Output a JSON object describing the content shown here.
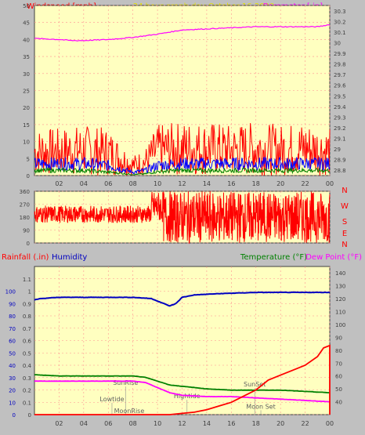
{
  "header": {
    "left_title": "Windspeed [mph]",
    "center_title": "24 hour graph day   October 16 2020",
    "right_title": "Barometer [.in]"
  },
  "colors": {
    "plot_bg": "#ffffc0",
    "frame_bg": "#c0c0c0",
    "grid": "#ff9090",
    "wind_gust": "#ff0000",
    "wind_avg": "#0000ff",
    "wind_low": "#008000",
    "barometer": "#ff00ff",
    "title_left": "#ff0000",
    "title_center": "#e0e000",
    "humidity": "#0000c0",
    "temperature": "#008000",
    "dewpoint": "#ff00ff",
    "rain": "#ff0000",
    "astro": "#606060"
  },
  "chart_data": [
    {
      "name": "wind",
      "type": "line",
      "ylabel_left": "Windspeed [mph]",
      "ylabel_right": "Barometer [.in]",
      "x_ticks": [
        "02",
        "04",
        "06",
        "08",
        "10",
        "12",
        "14",
        "16",
        "18",
        "20",
        "22",
        "00"
      ],
      "y_left_ticks": [
        "0",
        "5",
        "10",
        "15",
        "20",
        "25",
        "30",
        "35",
        "40",
        "45",
        "50"
      ],
      "y_right_ticks": [
        "28.8",
        "28.9",
        "29",
        "29.1",
        "29.2",
        "29.3",
        "29.4",
        "29.5",
        "29.6",
        "29.7",
        "29.8",
        "29.9",
        "30",
        "30.1",
        "30.2",
        "30.3"
      ],
      "ylim_left": [
        0,
        50
      ],
      "ylim_right": [
        28.75,
        30.35
      ],
      "xlim": [
        0,
        24
      ],
      "series": [
        {
          "key": "gust",
          "values_x": [
            0,
            2,
            4,
            6,
            7,
            8,
            9,
            10,
            12,
            14,
            16,
            18,
            20,
            22,
            24
          ],
          "values_y": [
            7,
            7,
            7.5,
            7,
            5,
            3,
            4,
            7.5,
            8,
            8,
            7.5,
            8,
            7.5,
            8,
            7
          ]
        },
        {
          "key": "average",
          "values_x": [
            0,
            2,
            4,
            6,
            7,
            8,
            9,
            10,
            12,
            14,
            16,
            18,
            20,
            22,
            24
          ],
          "values_y": [
            3.5,
            3.5,
            3.5,
            3,
            2,
            1,
            1.5,
            3,
            3.5,
            3.5,
            3.5,
            3.5,
            3.5,
            3.5,
            3.5
          ]
        },
        {
          "key": "low",
          "values_x": [
            0,
            2,
            4,
            6,
            7,
            8,
            9,
            10,
            12,
            14,
            16,
            18,
            20,
            22,
            24
          ],
          "values_y": [
            1.5,
            1.5,
            1.5,
            1,
            0.7,
            0.3,
            0.5,
            1.2,
            1.5,
            1.5,
            1.5,
            1.5,
            1.5,
            1.5,
            1.5
          ]
        },
        {
          "key": "barometer",
          "values_x": [
            0,
            2,
            3,
            4,
            6,
            8,
            10,
            12,
            14,
            16,
            18,
            20,
            22,
            23,
            24
          ],
          "values_y": [
            30.04,
            30.03,
            30.02,
            30.02,
            30.03,
            30.05,
            30.08,
            30.12,
            30.13,
            30.14,
            30.15,
            30.15,
            30.15,
            30.15,
            30.17
          ]
        }
      ]
    },
    {
      "name": "direction",
      "type": "scatter",
      "y_ticks": [
        "0",
        "90",
        "180",
        "270",
        "360"
      ],
      "compass": [
        "N",
        "W",
        "S",
        "E",
        "N"
      ],
      "ylim": [
        0,
        360
      ],
      "xlim": [
        0,
        24
      ],
      "segments": [
        {
          "x_from": 0,
          "x_to": 9.5,
          "y_center": 200,
          "spread": 60
        },
        {
          "x_from": 9.5,
          "x_to": 10.5,
          "y_center": 250,
          "spread": 110
        },
        {
          "x_from": 10.5,
          "x_to": 24,
          "y_center": 180,
          "spread": 180
        }
      ]
    },
    {
      "name": "climate",
      "type": "line",
      "ylabel_left": "Rainfall (.in)",
      "ylabel_left2": "Humidity",
      "ylabel_right": "Temperature (°F)",
      "ylabel_right2": "Dew Point (°F)",
      "x_ticks": [
        "02",
        "04",
        "06",
        "08",
        "10",
        "12",
        "14",
        "16",
        "18",
        "20",
        "22",
        "00"
      ],
      "y_left_ticks": [
        "0",
        "0.1",
        "0.2",
        "0.3",
        "0.4",
        "0.5",
        "0.6",
        "0.7",
        "0.8",
        "0.9",
        "1",
        "1.1"
      ],
      "y_left2_ticks": [
        "0",
        "10",
        "20",
        "30",
        "40",
        "50",
        "60",
        "70",
        "80",
        "90",
        "100"
      ],
      "y_right_ticks": [
        "40",
        "50",
        "60",
        "70",
        "80",
        "90",
        "100",
        "110",
        "120",
        "130",
        "140"
      ],
      "ylim_left": [
        0,
        1.2
      ],
      "ylim_right": [
        30,
        145
      ],
      "xlim": [
        0,
        24
      ],
      "series": [
        {
          "key": "humidity",
          "axis": "left2",
          "values_x": [
            0,
            0.5,
            2,
            6,
            8,
            9.5,
            10.5,
            11,
            11.5,
            12,
            13,
            15,
            18,
            20,
            22,
            24
          ],
          "values_y": [
            93,
            94,
            95,
            95,
            95,
            94,
            90,
            88,
            90,
            95,
            97,
            98,
            99,
            99,
            99,
            99
          ]
        },
        {
          "key": "temperature",
          "axis": "right",
          "values_x": [
            0,
            2,
            4,
            6,
            8,
            9,
            10,
            11,
            12,
            14,
            16,
            18,
            20,
            22,
            24
          ],
          "values_y": [
            61,
            60,
            60,
            60,
            60,
            59,
            56,
            53,
            52,
            50,
            49,
            49,
            49,
            48,
            47
          ]
        },
        {
          "key": "dewpoint",
          "axis": "right",
          "values_x": [
            0,
            2,
            4,
            6,
            8,
            9,
            10,
            11,
            12,
            14,
            16,
            18,
            20,
            22,
            24
          ],
          "values_y": [
            56,
            56,
            56,
            56,
            56,
            55,
            51,
            47,
            45,
            44,
            44,
            43,
            42,
            41,
            40
          ]
        },
        {
          "key": "rain",
          "axis": "left",
          "values_x": [
            0,
            11,
            12,
            13,
            14,
            15,
            16,
            17,
            18,
            19,
            20,
            21,
            22,
            23,
            23.5,
            24,
            24
          ],
          "values_y": [
            0,
            0,
            0.01,
            0.02,
            0.04,
            0.07,
            0.1,
            0.15,
            0.2,
            0.28,
            0.32,
            0.36,
            0.4,
            0.47,
            0.54,
            0.56,
            0
          ]
        }
      ],
      "astro": [
        {
          "label": "SunRise",
          "x": 7.4,
          "y_frac": 0.19
        },
        {
          "label": "Lowtide",
          "x": 6.3,
          "y_frac": 0.08
        },
        {
          "label": "MoonRise",
          "x": 7.7,
          "y_frac": 0.0
        },
        {
          "label": "Hightide",
          "x": 12.4,
          "y_frac": 0.1
        },
        {
          "label": "SunSet",
          "x": 17.9,
          "y_frac": 0.18
        },
        {
          "label": "Moon Set",
          "x": 18.4,
          "y_frac": 0.03
        }
      ]
    }
  ]
}
